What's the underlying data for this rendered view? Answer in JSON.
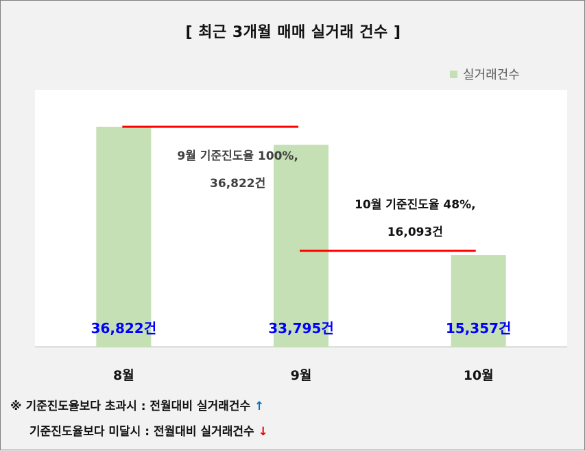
{
  "chart_data": {
    "type": "bar",
    "title": "[ 최근 3개월  매매 실거래 건수 ]",
    "categories": [
      "8월",
      "9월",
      "10월"
    ],
    "series": [
      {
        "name": "실거래건수",
        "values": [
          36822,
          33795,
          15357
        ]
      }
    ],
    "data_labels": [
      "36,822건",
      "33,795건",
      "15,357건"
    ],
    "ylim": [
      0,
      43000
    ],
    "legend": "top-right",
    "grid": false,
    "colors": {
      "bar": "#c5e0b4",
      "data_label": "#0000ff",
      "reference_line": "#ff0000"
    },
    "annotations": [
      {
        "line1": "9월 기준진도율 100%,",
        "line2": "36,822건",
        "reference_value": 36822,
        "from_category": "8월",
        "to_category": "9월"
      },
      {
        "line1": "10월 기준진도율 48%,",
        "line2": "16,093건",
        "reference_value": 16093,
        "from_category": "9월",
        "to_category": "10월"
      }
    ]
  },
  "notes": [
    {
      "prefix": "※",
      "text": "기준진도율보다 초과시 : 전월대비 실거래건수",
      "arrow": "↑",
      "arrow_icon": "arrow-up-icon"
    },
    {
      "prefix": "",
      "text": "기준진도율보다 미달시 : 전월대비 실거래건수",
      "arrow": "↓",
      "arrow_icon": "arrow-down-icon"
    }
  ]
}
